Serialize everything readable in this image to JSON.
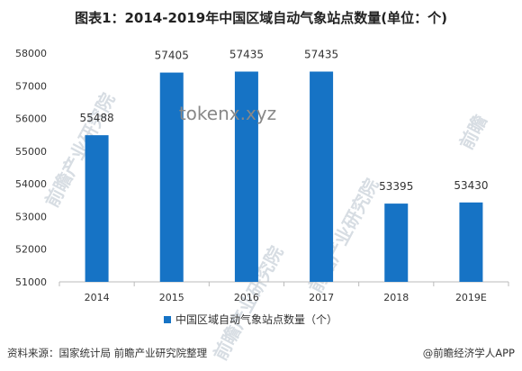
{
  "title": "图表1：2014-2019年中国区域自动气象站点数量(单位：个)",
  "source": "资料来源：国家统计局 前瞻产业研究院整理",
  "credit": "@前瞻经济学人APP",
  "watermarks": [
    "前瞻产业研究院",
    "前瞻产业研究院",
    "前瞻",
    "前瞻产业研究院"
  ],
  "overlay_text": "tokenx.xyz",
  "colors": {
    "bar": "#1673c5",
    "axis": "#bbbbbb"
  },
  "chart_data": {
    "type": "bar",
    "categories": [
      "2014",
      "2015",
      "2016",
      "2017",
      "2018",
      "2019E"
    ],
    "series": [
      {
        "name": "中国区域自动气象站点数量（个）",
        "values": [
          55488,
          57405,
          57435,
          57435,
          53395,
          53430
        ]
      }
    ],
    "data_labels": [
      "55488",
      "57405",
      "57435",
      "57435",
      "53395",
      "53430"
    ],
    "ylim": [
      51000,
      58000
    ],
    "yticks": [
      "51000",
      "52000",
      "53000",
      "54000",
      "55000",
      "56000",
      "57000",
      "58000"
    ],
    "legend_position": "bottom",
    "grid": false
  }
}
